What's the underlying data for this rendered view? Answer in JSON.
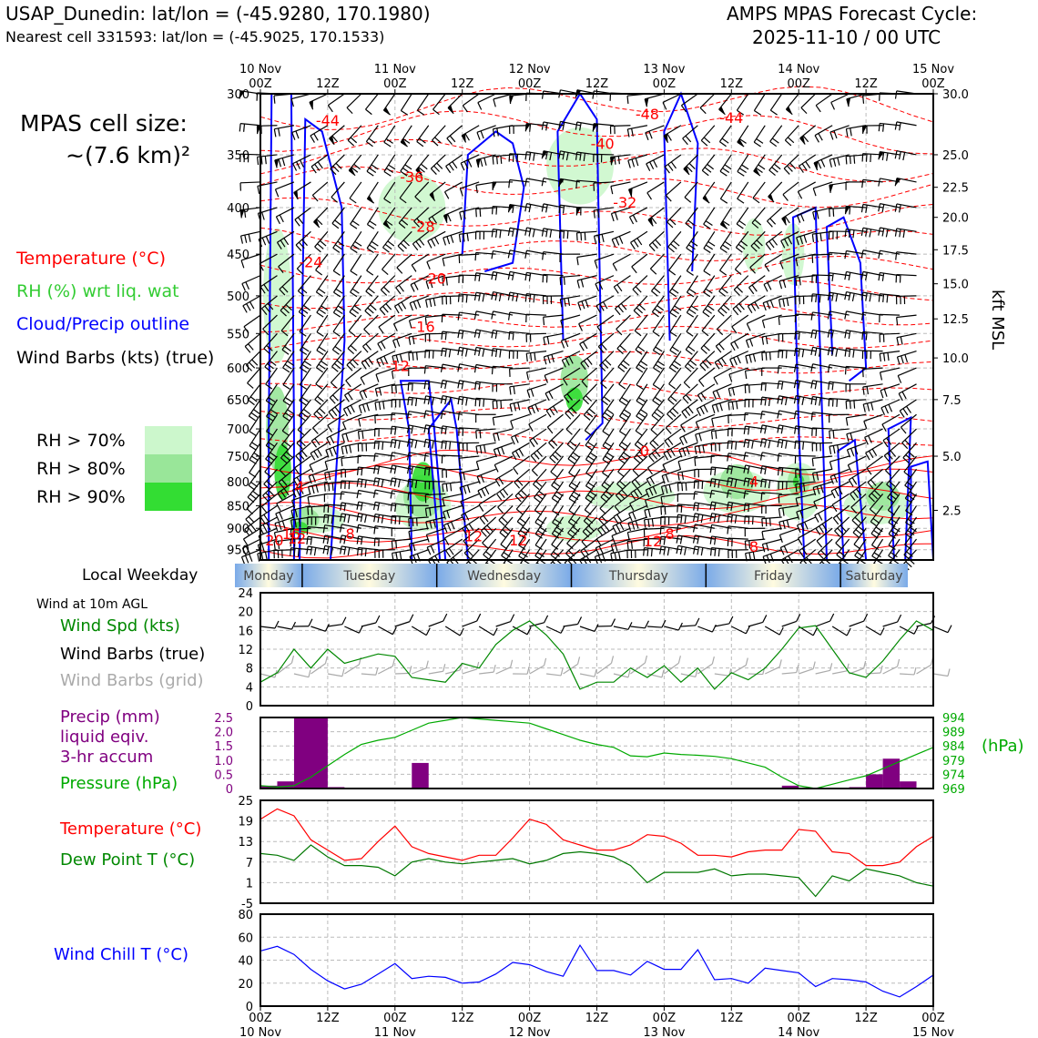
{
  "header": {
    "station_line": "USAP_Dunedin: lat/lon = (-45.9280, 170.1980)",
    "nearest_line": "Nearest cell 331593: lat/lon = (-45.9025, 170.1533)",
    "cycle_title": "AMPS MPAS Forecast Cycle:",
    "cycle_time": "2025-11-10 / 00 UTC"
  },
  "legend": {
    "cell_size_label": "MPAS cell size:",
    "cell_size_value": "~(7.6 km)²",
    "temperature": "Temperature (°C)",
    "rh": "RH (%) wrt liq. wat",
    "cloud": "Cloud/Precip outline",
    "barbs": "Wind Barbs (kts) (true)",
    "rh_levels": [
      {
        "label": "RH > 70%",
        "color": "#ccf7cc"
      },
      {
        "label": "RH > 80%",
        "color": "#99e699"
      },
      {
        "label": "RH > 90%",
        "color": "#33dd33"
      }
    ]
  },
  "colors": {
    "temperature": "#ff0000",
    "rh_text": "#33cc33",
    "cloud": "#0000ff",
    "precip": "#800080",
    "pressure": "#00aa00",
    "dew": "#007700",
    "windchill": "#0000ff",
    "barbs_grid": "#aaaaaa",
    "day_band": "#7aaae8"
  },
  "weekday": {
    "label": "Local Weekday",
    "days": [
      "Monday",
      "Tuesday",
      "Wednesday",
      "Thursday",
      "Friday",
      "Saturday"
    ]
  },
  "panel_labels": {
    "wind10m": "Wind at 10m AGL",
    "wind_spd": "Wind Spd (kts)",
    "wind_barbs_true": "Wind Barbs (true)",
    "wind_barbs_grid": "Wind Barbs (grid)",
    "precip1": "Precip (mm)",
    "precip2": "liquid eqiv.",
    "precip3": "3-hr accum",
    "pressure": "Pressure (hPa)",
    "hpa": "(hPa)",
    "temp": "Temperature (°C)",
    "dew": "Dew Point T (°C)",
    "windchill": "Wind Chill T (°C)",
    "kft": "kft MSL"
  },
  "chart_data": [
    {
      "type": "heatmap",
      "name": "time-height cross section",
      "x_ticks": [
        "00Z",
        "12Z",
        "00Z",
        "12Z",
        "00Z",
        "12Z",
        "00Z",
        "12Z",
        "00Z",
        "12Z",
        "00Z"
      ],
      "x_dates": [
        "10 Nov",
        "11 Nov",
        "12 Nov",
        "13 Nov",
        "14 Nov",
        "15 Nov"
      ],
      "y_ticks_hpa": [
        300,
        350,
        400,
        450,
        500,
        550,
        600,
        650,
        700,
        750,
        800,
        850,
        900,
        950
      ],
      "y2_ticks_kft": [
        "30.0",
        "25.0",
        "22.5",
        "20.0",
        "17.5",
        "15.0",
        "12.5",
        "10.0",
        "7.5",
        "5.0",
        "2.5"
      ],
      "y2_ticks_hpa": [
        300,
        350,
        380,
        410,
        445,
        485,
        530,
        585,
        650,
        750,
        860
      ],
      "temperature_contour_labels": [
        {
          "text": "-44",
          "t": 12,
          "p": 325
        },
        {
          "text": "-36",
          "t": 27,
          "p": 375
        },
        {
          "text": "-28",
          "t": 29,
          "p": 425
        },
        {
          "text": "-24",
          "t": 9,
          "p": 465
        },
        {
          "text": "-20",
          "t": 31,
          "p": 485
        },
        {
          "text": "-16",
          "t": 29,
          "p": 548
        },
        {
          "text": "-12",
          "t": 24.5,
          "p": 605
        },
        {
          "text": "-48",
          "t": 69,
          "p": 320
        },
        {
          "text": "-40",
          "t": 61,
          "p": 345
        },
        {
          "text": "-32",
          "t": 65,
          "p": 400
        },
        {
          "text": "-44",
          "t": 84,
          "p": 323
        },
        {
          "text": "0",
          "t": 68.5,
          "p": 750
        },
        {
          "text": "4",
          "t": 7,
          "p": 820
        },
        {
          "text": "8",
          "t": 16,
          "p": 925
        },
        {
          "text": "12",
          "t": 6.5,
          "p": 935
        },
        {
          "text": "12",
          "t": 38,
          "p": 930
        },
        {
          "text": "12",
          "t": 46,
          "p": 940
        },
        {
          "text": "12",
          "t": 70,
          "p": 942
        },
        {
          "text": "8",
          "t": 73,
          "p": 925
        },
        {
          "text": "20",
          "t": 2.5,
          "p": 940
        },
        {
          "text": "16",
          "t": 5.5,
          "p": 925
        },
        {
          "text": "4",
          "t": 88,
          "p": 810
        },
        {
          "text": "8",
          "t": 88,
          "p": 955
        }
      ]
    },
    {
      "type": "line",
      "name": "Wind Spd (kts)",
      "x_hours": [
        0,
        3,
        6,
        9,
        12,
        15,
        18,
        21,
        24,
        27,
        30,
        33,
        36,
        39,
        42,
        45,
        48,
        51,
        54,
        57,
        60,
        63,
        66,
        69,
        72,
        75,
        78,
        81,
        84,
        87,
        90,
        93,
        96,
        99,
        102,
        105,
        108,
        111,
        114,
        117,
        120
      ],
      "values": [
        5,
        7,
        12,
        8,
        12,
        9,
        10,
        11,
        10.5,
        6,
        5.5,
        5,
        9,
        8,
        13,
        16,
        18,
        15,
        11,
        3.5,
        5,
        5,
        8,
        6,
        8.5,
        5,
        8,
        3.5,
        7,
        5.5,
        8,
        12,
        16.5,
        17,
        12,
        7,
        6,
        9.5,
        14,
        18,
        16
      ],
      "ylim": [
        0,
        24
      ],
      "yticks": [
        0,
        4,
        8,
        12,
        16,
        20,
        24
      ]
    },
    {
      "type": "bar",
      "name": "Precip (mm)",
      "ylim": [
        0,
        2.5
      ],
      "yticks": [
        "0",
        "0.5",
        "1.0",
        "1.5",
        "2.0",
        "2.5"
      ],
      "bars": [
        {
          "t0": 0,
          "t1": 3,
          "v": 0.1
        },
        {
          "t0": 3,
          "t1": 6,
          "v": 0.25
        },
        {
          "t0": 6,
          "t1": 12,
          "v": 2.5
        },
        {
          "t0": 12,
          "t1": 15,
          "v": 0.05
        },
        {
          "t0": 27,
          "t1": 30,
          "v": 0.9
        },
        {
          "t0": 93,
          "t1": 96,
          "v": 0.1
        },
        {
          "t0": 105,
          "t1": 108,
          "v": 0.05
        },
        {
          "t0": 108,
          "t1": 111,
          "v": 0.5
        },
        {
          "t0": 111,
          "t1": 114,
          "v": 1.05
        },
        {
          "t0": 114,
          "t1": 117,
          "v": 0.25
        }
      ]
    },
    {
      "type": "line",
      "name": "Pressure (hPa)",
      "ylim": [
        969,
        994
      ],
      "yticks": [
        969,
        974,
        979,
        984,
        989,
        994
      ],
      "x_hours": [
        0,
        3,
        6,
        9,
        12,
        15,
        18,
        21,
        24,
        27,
        30,
        33,
        36,
        39,
        42,
        45,
        48,
        51,
        54,
        57,
        60,
        63,
        66,
        69,
        72,
        75,
        78,
        81,
        84,
        87,
        90,
        93,
        96,
        99,
        102,
        105,
        108,
        111,
        114,
        117,
        120
      ],
      "values": [
        970,
        969.5,
        970,
        973,
        977,
        981,
        984.5,
        986,
        987,
        989.5,
        992,
        993,
        994,
        993.5,
        993,
        992.5,
        992,
        990,
        988,
        986,
        984.5,
        983.5,
        980.5,
        980.2,
        981.5,
        981,
        980.7,
        980.3,
        979.5,
        978,
        976.5,
        973,
        970,
        969,
        970.5,
        972,
        973.5,
        976,
        978.5,
        981,
        983.5
      ]
    },
    {
      "type": "line",
      "name": "Temperature / Dew Point (°C)",
      "ylim": [
        -5,
        25
      ],
      "yticks": [
        -5,
        1,
        7,
        13,
        19,
        25
      ],
      "x_hours": [
        0,
        3,
        6,
        9,
        12,
        15,
        18,
        21,
        24,
        27,
        30,
        33,
        36,
        39,
        42,
        45,
        48,
        51,
        54,
        57,
        60,
        63,
        66,
        69,
        72,
        75,
        78,
        81,
        84,
        87,
        90,
        93,
        96,
        99,
        102,
        105,
        108,
        111,
        114,
        117,
        120
      ],
      "series": [
        {
          "name": "Temperature (°C)",
          "values": [
            19.5,
            22.5,
            20.5,
            13.5,
            10.5,
            7.5,
            8,
            13,
            17.5,
            11.5,
            9.5,
            8.5,
            7.5,
            9,
            9,
            14,
            19.5,
            18,
            13.5,
            12,
            10.5,
            10.5,
            12,
            15,
            14.5,
            12.5,
            9,
            9,
            8.5,
            10,
            10.5,
            10.5,
            16.5,
            16,
            10,
            9.5,
            6,
            6,
            7,
            11.5,
            14.5
          ]
        },
        {
          "name": "Dew Point T (°C)",
          "values": [
            9.5,
            9,
            7.5,
            12,
            8.5,
            6,
            6,
            5.5,
            3,
            7,
            8,
            7,
            6.5,
            7,
            7.5,
            8,
            6.5,
            7.5,
            9.5,
            10,
            9.5,
            8.5,
            6,
            1,
            4,
            4,
            4,
            5,
            3,
            3.5,
            3.5,
            3,
            2.5,
            -3,
            3,
            1.5,
            5,
            4,
            3,
            1,
            0
          ]
        }
      ]
    },
    {
      "type": "line",
      "name": "Wind Chill T (°C)",
      "ylim": [
        0,
        80
      ],
      "yticks": [
        0,
        20,
        40,
        60,
        80
      ],
      "x_hours": [
        0,
        3,
        6,
        9,
        12,
        15,
        18,
        21,
        24,
        27,
        30,
        33,
        36,
        39,
        42,
        45,
        48,
        51,
        54,
        57,
        60,
        63,
        66,
        69,
        72,
        75,
        78,
        81,
        84,
        87,
        90,
        93,
        96,
        99,
        102,
        105,
        108,
        111,
        114,
        117,
        120
      ],
      "values": [
        48,
        52,
        45,
        32,
        22,
        15,
        19,
        28,
        37,
        24,
        26,
        25,
        20,
        21,
        28,
        38,
        36,
        30,
        26,
        53,
        31,
        31,
        27,
        39,
        32,
        32,
        49,
        23,
        24,
        20,
        33,
        31,
        29,
        17,
        24,
        23,
        21,
        13,
        8,
        17,
        27
      ]
    }
  ]
}
